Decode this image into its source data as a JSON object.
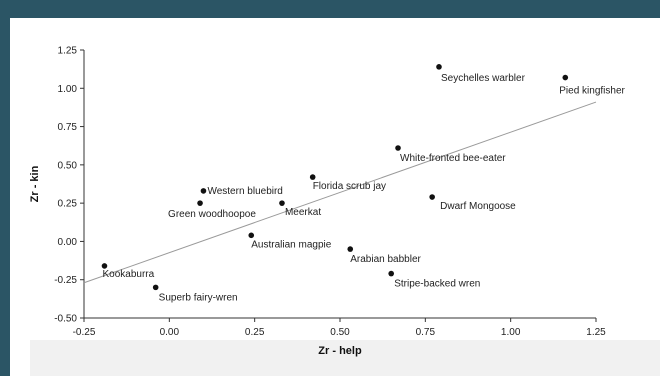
{
  "chart_data": {
    "type": "scatter",
    "xlabel": "Zr - help",
    "ylabel": "Zr - kin",
    "xlim": [
      -0.25,
      1.25
    ],
    "ylim": [
      -0.5,
      1.25
    ],
    "x_ticks": [
      "-0.25",
      "0.00",
      "0.25",
      "0.50",
      "0.75",
      "1.00",
      "1.25"
    ],
    "y_ticks": [
      "1.25",
      "1.00",
      "0.75",
      "0.50",
      "0.25",
      "0.00",
      "-0.25",
      "-0.50"
    ],
    "points": [
      {
        "label": "Seychelles warbler",
        "x": 0.79,
        "y": 1.14
      },
      {
        "label": "Pied kingfisher",
        "x": 1.16,
        "y": 1.07
      },
      {
        "label": "White-fronted bee-eater",
        "x": 0.67,
        "y": 0.61
      },
      {
        "label": "Florida scrub jay",
        "x": 0.42,
        "y": 0.42
      },
      {
        "label": "Western bluebird",
        "x": 0.1,
        "y": 0.33
      },
      {
        "label": "Green woodhoopoe",
        "x": 0.09,
        "y": 0.25
      },
      {
        "label": "Meerkat",
        "x": 0.33,
        "y": 0.25
      },
      {
        "label": "Dwarf Mongoose",
        "x": 0.77,
        "y": 0.29
      },
      {
        "label": "Australian magpie",
        "x": 0.24,
        "y": 0.04
      },
      {
        "label": "Arabian babbler",
        "x": 0.53,
        "y": -0.05
      },
      {
        "label": "Kookaburra",
        "x": -0.19,
        "y": -0.16
      },
      {
        "label": "Stripe-backed wren",
        "x": 0.65,
        "y": -0.21
      },
      {
        "label": "Superb fairy-wren",
        "x": -0.04,
        "y": -0.3
      }
    ],
    "regression_line": {
      "x": [
        -0.25,
        1.25
      ],
      "y": [
        -0.27,
        0.91
      ]
    },
    "grid": false,
    "colors": {
      "point": "#111111",
      "line": "#9a9a9a",
      "axis": "#333333"
    }
  }
}
